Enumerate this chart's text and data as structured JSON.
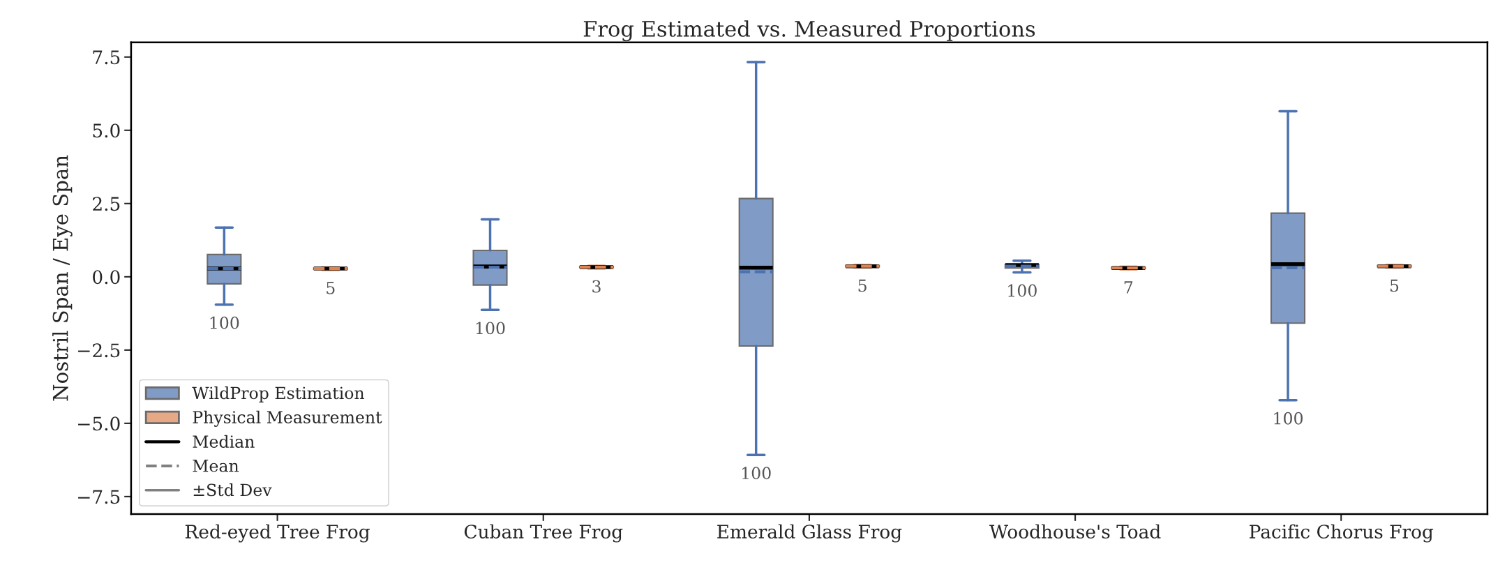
{
  "chart_data": {
    "type": "box",
    "title": "Frog Estimated vs. Measured Proportions",
    "ylabel": "Nostril Span / Eye Span",
    "categories": [
      "Red-eyed Tree Frog",
      "Cuban Tree Frog",
      "Emerald Glass Frog",
      "Woodhouse's Toad",
      "Pacific Chorus Frog"
    ],
    "series": [
      {
        "name": "WildProp Estimation",
        "color": "#4c72b0",
        "boxes": [
          {
            "low": -0.95,
            "q1": -0.24,
            "median": 0.28,
            "q3": 0.76,
            "high": 1.68,
            "mean": 0.28
          },
          {
            "low": -1.13,
            "q1": -0.28,
            "median": 0.35,
            "q3": 0.9,
            "high": 1.96,
            "mean": 0.33
          },
          {
            "low": -6.08,
            "q1": -2.36,
            "median": 0.31,
            "q3": 2.67,
            "high": 7.33,
            "mean": 0.17
          },
          {
            "low": 0.15,
            "q1": 0.3,
            "median": 0.4,
            "q3": 0.42,
            "high": 0.55,
            "mean": 0.36
          },
          {
            "low": -4.21,
            "q1": -1.58,
            "median": 0.43,
            "q3": 2.17,
            "high": 5.65,
            "mean": 0.31
          }
        ]
      },
      {
        "name": "Physical Measurement",
        "color": "#dd8452",
        "boxes": [
          {
            "low": 0.24,
            "q1": 0.26,
            "median": 0.28,
            "q3": 0.3,
            "high": 0.32,
            "mean": 0.28
          },
          {
            "low": 0.29,
            "q1": 0.31,
            "median": 0.33,
            "q3": 0.35,
            "high": 0.37,
            "mean": 0.33
          },
          {
            "low": 0.32,
            "q1": 0.34,
            "median": 0.36,
            "q3": 0.38,
            "high": 0.4,
            "mean": 0.36
          },
          {
            "low": 0.26,
            "q1": 0.28,
            "median": 0.3,
            "q3": 0.32,
            "high": 0.34,
            "mean": 0.3
          },
          {
            "low": 0.32,
            "q1": 0.34,
            "median": 0.36,
            "q3": 0.38,
            "high": 0.4,
            "mean": 0.36
          }
        ]
      }
    ],
    "annotations": [
      "Median",
      "Mean",
      "±Std Dev",
      "100",
      "5",
      "100",
      "3",
      "100",
      "5",
      "100",
      "7",
      "100",
      "5"
    ],
    "ylim": [
      -8.1,
      8.0
    ],
    "yticks": [
      {
        "value": -7.5,
        "label": "−7.5"
      },
      {
        "value": -5.0,
        "label": "−5.0"
      },
      {
        "value": -2.5,
        "label": "−2.5"
      },
      {
        "value": 0.0,
        "label": "0.0"
      },
      {
        "value": 2.5,
        "label": "2.5"
      },
      {
        "value": 5.0,
        "label": "5.0"
      },
      {
        "value": 7.5,
        "label": "7.5"
      }
    ],
    "legend": "bottom left",
    "grid": false
  }
}
